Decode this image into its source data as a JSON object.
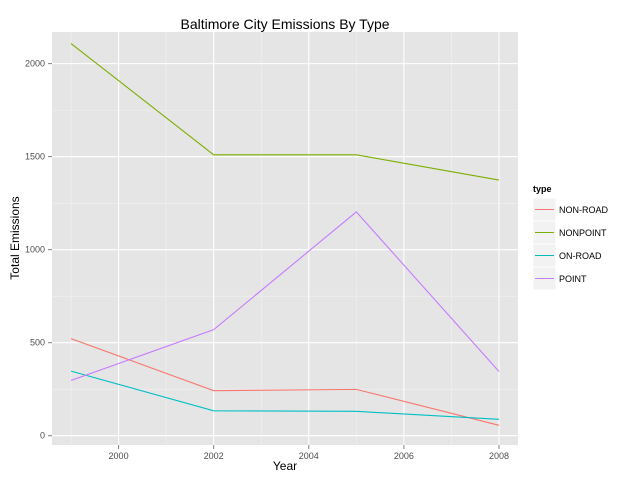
{
  "chart_data": {
    "type": "line",
    "title": "Baltimore City Emissions By Type",
    "xlabel": "Year",
    "ylabel": "Total Emissions",
    "x": [
      1999,
      2002,
      2005,
      2008
    ],
    "xlim": [
      1998.6,
      2008.4
    ],
    "ylim": [
      -50,
      2170
    ],
    "xticks": [
      2000,
      2002,
      2004,
      2006,
      2008
    ],
    "yticks": [
      0,
      500,
      1000,
      1500,
      2000
    ],
    "grid": true,
    "legend": {
      "title": "type",
      "position": "right"
    },
    "series": [
      {
        "name": "NON-ROAD",
        "color": "#F8766D",
        "values": [
          522,
          242,
          249,
          56
        ]
      },
      {
        "name": "NONPOINT",
        "color": "#7CAE00",
        "values": [
          2108,
          1510,
          1510,
          1374
        ]
      },
      {
        "name": "ON-ROAD",
        "color": "#00BFC4",
        "values": [
          347,
          134,
          131,
          88
        ]
      },
      {
        "name": "POINT",
        "color": "#C77CFF",
        "values": [
          297,
          570,
          1203,
          345
        ]
      }
    ]
  }
}
